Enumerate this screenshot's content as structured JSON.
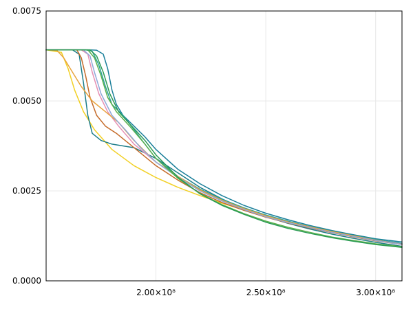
{
  "chart_data": {
    "type": "line",
    "title": "",
    "xlabel": "",
    "ylabel": "",
    "xlim": [
      150000000,
      312000000
    ],
    "ylim": [
      0,
      0.0075
    ],
    "grid": true,
    "x_ticks": [
      {
        "value": 200000000,
        "label": "2.00×10⁸"
      },
      {
        "value": 250000000,
        "label": "2.50×10⁸"
      },
      {
        "value": 300000000,
        "label": "3.00×10⁸"
      }
    ],
    "y_ticks": [
      {
        "value": 0,
        "label": "0.0000"
      },
      {
        "value": 0.0025,
        "label": "0.0025"
      },
      {
        "value": 0.005,
        "label": "0.0050"
      },
      {
        "value": 0.0075,
        "label": "0.0075"
      }
    ],
    "series": [
      {
        "color": "#1a7f9a",
        "points": [
          [
            150000000,
            0.00642
          ],
          [
            160000000,
            0.00642
          ],
          [
            170000000,
            0.00642
          ],
          [
            173000000,
            0.00641
          ],
          [
            176000000,
            0.0063
          ],
          [
            178000000,
            0.0059
          ],
          [
            180000000,
            0.0053
          ],
          [
            182000000,
            0.0049
          ],
          [
            185000000,
            0.0046
          ],
          [
            190000000,
            0.0043
          ],
          [
            195000000,
            0.004
          ],
          [
            200000000,
            0.00365
          ],
          [
            210000000,
            0.0031
          ],
          [
            220000000,
            0.0027
          ],
          [
            230000000,
            0.00237
          ],
          [
            240000000,
            0.0021
          ],
          [
            250000000,
            0.00188
          ],
          [
            260000000,
            0.0017
          ],
          [
            270000000,
            0.00154
          ],
          [
            280000000,
            0.0014
          ],
          [
            290000000,
            0.00128
          ],
          [
            300000000,
            0.00117
          ],
          [
            312000000,
            0.00108
          ]
        ]
      },
      {
        "color": "#f2d024",
        "points": [
          [
            150000000,
            0.00642
          ],
          [
            157000000,
            0.00635
          ],
          [
            160000000,
            0.0059
          ],
          [
            163000000,
            0.0053
          ],
          [
            167000000,
            0.0047
          ],
          [
            172000000,
            0.0042
          ],
          [
            180000000,
            0.00365
          ],
          [
            190000000,
            0.0032
          ],
          [
            200000000,
            0.00287
          ],
          [
            210000000,
            0.0026
          ],
          [
            220000000,
            0.00237
          ],
          [
            230000000,
            0.00216
          ],
          [
            240000000,
            0.00197
          ],
          [
            250000000,
            0.0018
          ],
          [
            260000000,
            0.00164
          ],
          [
            270000000,
            0.0015
          ],
          [
            280000000,
            0.00137
          ],
          [
            290000000,
            0.00125
          ],
          [
            300000000,
            0.00113
          ],
          [
            312000000,
            0.00101
          ]
        ]
      },
      {
        "color": "#1b7c88",
        "points": [
          [
            150000000,
            0.00642
          ],
          [
            162000000,
            0.00642
          ],
          [
            165000000,
            0.0063
          ],
          [
            167000000,
            0.0055
          ],
          [
            169000000,
            0.0046
          ],
          [
            171000000,
            0.0041
          ],
          [
            175000000,
            0.0039
          ],
          [
            180000000,
            0.0038
          ],
          [
            190000000,
            0.0037
          ],
          [
            200000000,
            0.0034
          ],
          [
            210000000,
            0.003
          ],
          [
            220000000,
            0.0026
          ],
          [
            230000000,
            0.00228
          ],
          [
            240000000,
            0.002
          ],
          [
            250000000,
            0.00178
          ],
          [
            260000000,
            0.0016
          ],
          [
            270000000,
            0.00144
          ],
          [
            280000000,
            0.0013
          ],
          [
            290000000,
            0.00118
          ],
          [
            300000000,
            0.00107
          ],
          [
            312000000,
            0.00096
          ]
        ]
      },
      {
        "color": "#2aa198",
        "points": [
          [
            150000000,
            0.00642
          ],
          [
            168000000,
            0.00642
          ],
          [
            171000000,
            0.00638
          ],
          [
            174000000,
            0.006
          ],
          [
            177000000,
            0.0054
          ],
          [
            180000000,
            0.0049
          ],
          [
            185000000,
            0.0046
          ],
          [
            190000000,
            0.0042
          ],
          [
            195000000,
            0.0038
          ],
          [
            200000000,
            0.0034
          ],
          [
            210000000,
            0.0029
          ],
          [
            220000000,
            0.00255
          ],
          [
            230000000,
            0.00227
          ],
          [
            240000000,
            0.00203
          ],
          [
            250000000,
            0.00183
          ],
          [
            260000000,
            0.00166
          ],
          [
            270000000,
            0.00151
          ],
          [
            280000000,
            0.00138
          ],
          [
            290000000,
            0.00126
          ],
          [
            300000000,
            0.00115
          ],
          [
            312000000,
            0.00104
          ]
        ]
      },
      {
        "color": "#c46a28",
        "points": [
          [
            150000000,
            0.00642
          ],
          [
            164000000,
            0.00642
          ],
          [
            166000000,
            0.0062
          ],
          [
            168000000,
            0.0057
          ],
          [
            170000000,
            0.0051
          ],
          [
            173000000,
            0.0046
          ],
          [
            177000000,
            0.0043
          ],
          [
            182000000,
            0.0041
          ],
          [
            190000000,
            0.0037
          ],
          [
            200000000,
            0.0032
          ],
          [
            210000000,
            0.0028
          ],
          [
            220000000,
            0.00245
          ],
          [
            230000000,
            0.00218
          ],
          [
            240000000,
            0.00196
          ],
          [
            250000000,
            0.00177
          ],
          [
            260000000,
            0.00161
          ],
          [
            270000000,
            0.00147
          ],
          [
            280000000,
            0.00134
          ],
          [
            290000000,
            0.00122
          ],
          [
            300000000,
            0.00111
          ],
          [
            312000000,
            0.00101
          ]
        ]
      },
      {
        "color": "#e58fb3",
        "points": [
          [
            150000000,
            0.00642
          ],
          [
            166000000,
            0.00642
          ],
          [
            169000000,
            0.0063
          ],
          [
            171000000,
            0.0058
          ],
          [
            174000000,
            0.0052
          ],
          [
            178000000,
            0.0047
          ],
          [
            183000000,
            0.0043
          ],
          [
            190000000,
            0.0038
          ],
          [
            200000000,
            0.0033
          ],
          [
            210000000,
            0.0029
          ],
          [
            220000000,
            0.00252
          ],
          [
            230000000,
            0.00223
          ],
          [
            240000000,
            0.002
          ],
          [
            250000000,
            0.0018
          ],
          [
            260000000,
            0.00163
          ],
          [
            270000000,
            0.00149
          ],
          [
            280000000,
            0.00136
          ],
          [
            290000000,
            0.00124
          ],
          [
            300000000,
            0.00113
          ],
          [
            312000000,
            0.00102
          ]
        ]
      },
      {
        "color": "#e8a33d",
        "points": [
          [
            150000000,
            0.00642
          ],
          [
            155000000,
            0.0064
          ],
          [
            158000000,
            0.0062
          ],
          [
            162000000,
            0.0058
          ],
          [
            166000000,
            0.0054
          ],
          [
            171000000,
            0.005
          ],
          [
            177000000,
            0.0047
          ],
          [
            183000000,
            0.0044
          ],
          [
            190000000,
            0.0039
          ],
          [
            200000000,
            0.0033
          ],
          [
            210000000,
            0.0029
          ],
          [
            220000000,
            0.00253
          ],
          [
            230000000,
            0.00224
          ],
          [
            240000000,
            0.00201
          ],
          [
            250000000,
            0.00181
          ],
          [
            260000000,
            0.00164
          ],
          [
            270000000,
            0.0015
          ],
          [
            280000000,
            0.00137
          ],
          [
            290000000,
            0.00125
          ],
          [
            300000000,
            0.00113
          ],
          [
            312000000,
            0.00101
          ]
        ]
      },
      {
        "color": "#8fa8d8",
        "points": [
          [
            150000000,
            0.00642
          ],
          [
            167000000,
            0.00642
          ],
          [
            170000000,
            0.00625
          ],
          [
            172000000,
            0.0058
          ],
          [
            175000000,
            0.0052
          ],
          [
            180000000,
            0.0046
          ],
          [
            186000000,
            0.0042
          ],
          [
            193000000,
            0.0037
          ],
          [
            200000000,
            0.0033
          ],
          [
            210000000,
            0.00288
          ],
          [
            220000000,
            0.0025
          ],
          [
            230000000,
            0.00222
          ],
          [
            240000000,
            0.00198
          ],
          [
            250000000,
            0.00178
          ],
          [
            260000000,
            0.00162
          ],
          [
            270000000,
            0.00148
          ],
          [
            280000000,
            0.00135
          ],
          [
            290000000,
            0.00123
          ],
          [
            300000000,
            0.00112
          ],
          [
            312000000,
            0.00101
          ]
        ]
      },
      {
        "color": "#5ab04c",
        "points": [
          [
            150000000,
            0.00642
          ],
          [
            169000000,
            0.00642
          ],
          [
            172000000,
            0.0062
          ],
          [
            175000000,
            0.0057
          ],
          [
            178000000,
            0.0051
          ],
          [
            182000000,
            0.0047
          ],
          [
            188000000,
            0.0043
          ],
          [
            195000000,
            0.0038
          ],
          [
            200000000,
            0.0034
          ],
          [
            210000000,
            0.00285
          ],
          [
            220000000,
            0.00243
          ],
          [
            230000000,
            0.00212
          ],
          [
            240000000,
            0.00187
          ],
          [
            250000000,
            0.00166
          ],
          [
            260000000,
            0.00149
          ],
          [
            270000000,
            0.00135
          ],
          [
            280000000,
            0.00122
          ],
          [
            290000000,
            0.00112
          ],
          [
            300000000,
            0.00103
          ],
          [
            312000000,
            0.00095
          ]
        ]
      },
      {
        "color": "#2a9a55",
        "points": [
          [
            150000000,
            0.00642
          ],
          [
            170000000,
            0.00642
          ],
          [
            173000000,
            0.00625
          ],
          [
            176000000,
            0.0058
          ],
          [
            179000000,
            0.0052
          ],
          [
            183000000,
            0.0047
          ],
          [
            189000000,
            0.0043
          ],
          [
            195000000,
            0.0039
          ],
          [
            200000000,
            0.0035
          ],
          [
            210000000,
            0.00288
          ],
          [
            220000000,
            0.00242
          ],
          [
            230000000,
            0.0021
          ],
          [
            240000000,
            0.00185
          ],
          [
            250000000,
            0.00163
          ],
          [
            260000000,
            0.00146
          ],
          [
            270000000,
            0.00132
          ],
          [
            280000000,
            0.0012
          ],
          [
            290000000,
            0.0011
          ],
          [
            300000000,
            0.00101
          ],
          [
            312000000,
            0.00093
          ]
        ]
      }
    ]
  }
}
